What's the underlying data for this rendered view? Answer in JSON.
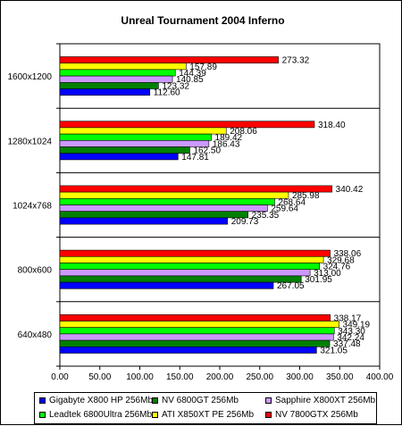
{
  "chart_data": {
    "type": "bar",
    "orientation": "horizontal",
    "title": "Unreal Tournament 2004 Inferno",
    "categories": [
      "1600x1200",
      "1280x1024",
      "1024x768",
      "800x600",
      "640x480"
    ],
    "series": [
      {
        "name": "NV 7800GTX 256Mb",
        "color": "#ff0000",
        "values": [
          273.32,
          318.4,
          340.42,
          338.06,
          338.17
        ]
      },
      {
        "name": "ATI X850XT PE 256Mb",
        "color": "#ffff00",
        "values": [
          157.89,
          208.06,
          285.98,
          329.68,
          349.19
        ]
      },
      {
        "name": "Leadtek 6800Ultra 256Mb",
        "color": "#00ff00",
        "values": [
          144.39,
          189.42,
          268.64,
          324.76,
          343.3
        ]
      },
      {
        "name": "Sapphire X800XT 256Mb",
        "color": "#cc99ff",
        "values": [
          140.85,
          186.43,
          259.64,
          313.0,
          342.24
        ]
      },
      {
        "name": "NV 6800GT 256Mb",
        "color": "#008000",
        "values": [
          123.32,
          162.5,
          235.35,
          301.95,
          337.48
        ]
      },
      {
        "name": "Gigabyte X800 HP 256Mb",
        "color": "#0000ff",
        "values": [
          112.6,
          147.81,
          209.73,
          267.05,
          321.05
        ]
      }
    ],
    "value_labels": [
      [
        "273.32",
        "157.89",
        "144.39",
        "140.85",
        "123.32",
        "112.60"
      ],
      [
        "318.40",
        "208.06",
        "189.42",
        "186.43",
        "162.50",
        "147.81"
      ],
      [
        "340.42",
        "285.98",
        "268.64",
        "259.64",
        "235.35",
        "209.73"
      ],
      [
        "338.06",
        "329.68",
        "324.76",
        "313.00",
        "301.95",
        "267.05"
      ],
      [
        "338.17",
        "349.19",
        "343.30",
        "342.24",
        "337.48",
        "321.05"
      ]
    ],
    "xlim": [
      0,
      400
    ],
    "xticks": [
      "0.00",
      "50.00",
      "100.00",
      "150.00",
      "200.00",
      "250.00",
      "300.00",
      "350.00",
      "400.00"
    ],
    "xlabel": "",
    "ylabel": "",
    "legend": {
      "position": "bottom",
      "rows": [
        [
          "Gigabyte X800 HP 256Mb",
          "NV 6800GT 256Mb",
          "Sapphire X800XT 256Mb"
        ],
        [
          "Leadtek 6800Ultra 256Mb",
          "ATI X850XT PE 256Mb",
          "NV 7800GTX 256Mb"
        ]
      ]
    },
    "grid": false,
    "plot_background": "#ffffff"
  }
}
